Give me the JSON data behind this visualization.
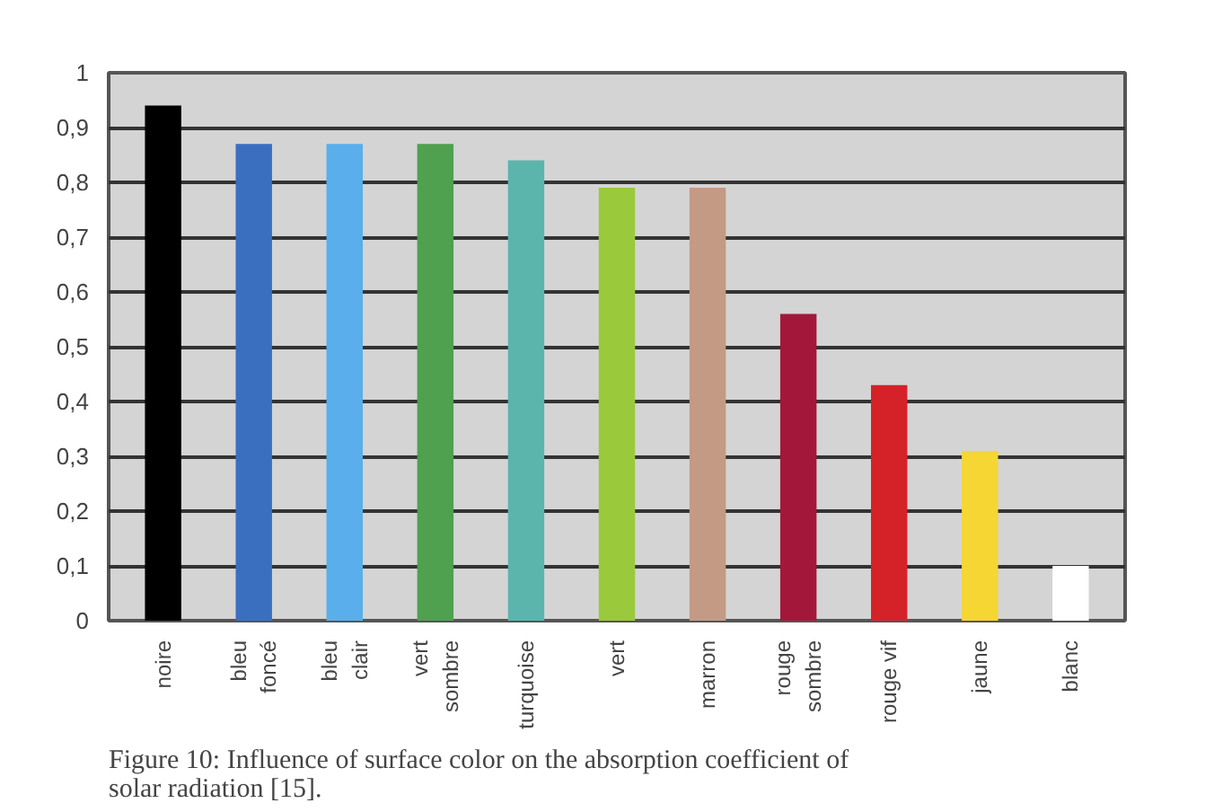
{
  "chart_data": {
    "type": "bar",
    "categories": [
      "noire",
      "bleu\nfoncé",
      "bleu\nclair",
      "vert\nsombre",
      "turquoise",
      "vert",
      "marron",
      "rouge\nsombre",
      "rouge vif",
      "jaune",
      "blanc"
    ],
    "values": [
      0.94,
      0.87,
      0.87,
      0.87,
      0.84,
      0.79,
      0.79,
      0.56,
      0.43,
      0.31,
      0.1
    ],
    "colors": [
      "#000000",
      "#3a6fc0",
      "#59aeeb",
      "#4fa04f",
      "#5bb5ad",
      "#9ac93c",
      "#c49a84",
      "#a3183a",
      "#d42228",
      "#f5d633",
      "#ffffff"
    ],
    "ylim": [
      0,
      1
    ],
    "yticks": [
      0,
      {
        "value": 0.1,
        "label": "0,1"
      },
      {
        "value": 0.2,
        "label": "0,2"
      },
      {
        "value": 0.3,
        "label": "0,3"
      },
      {
        "value": 0.4,
        "label": "0,4"
      },
      {
        "value": 0.5,
        "label": "0,5"
      },
      {
        "value": 0.6,
        "label": "0,6"
      },
      {
        "value": 0.7,
        "label": "0,7"
      },
      {
        "value": 0.8,
        "label": "0,8"
      },
      {
        "value": 0.9,
        "label": "0,9"
      },
      1
    ],
    "grid": "y",
    "annotations": [
      "Figure 10: Influence of surface color on the absorption coefficient of solar radiation [15]."
    ]
  }
}
